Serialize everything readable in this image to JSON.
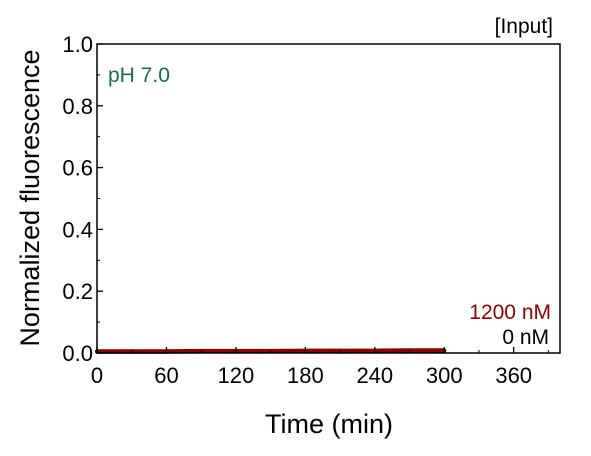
{
  "chart_data": {
    "type": "line",
    "xlabel": "Time (min)",
    "ylabel": "Normalized fluorescence",
    "xlim": [
      0,
      400
    ],
    "ylim": [
      0,
      1.0
    ],
    "x_ticks": [
      0,
      60,
      120,
      180,
      240,
      300,
      360
    ],
    "y_ticks": [
      "0.0",
      "0.2",
      "0.4",
      "0.6",
      "0.8",
      "1.0"
    ],
    "grid": false,
    "legend_title": "[Input]",
    "condition_label": "pH 7.0",
    "series": [
      {
        "name": "1200 nM",
        "color": "#8b0000",
        "x": [
          0,
          30,
          60,
          90,
          120,
          150,
          180,
          210,
          240,
          270,
          300
        ],
        "y": [
          0.005,
          0.005,
          0.005,
          0.006,
          0.006,
          0.006,
          0.007,
          0.007,
          0.007,
          0.008,
          0.008
        ]
      },
      {
        "name": "0 nM",
        "color": "#000000",
        "x": [
          0,
          30,
          60,
          90,
          120,
          150,
          180,
          210,
          240,
          270,
          300
        ],
        "y": [
          0.003,
          0.003,
          0.003,
          0.003,
          0.003,
          0.003,
          0.003,
          0.003,
          0.003,
          0.003,
          0.003
        ]
      }
    ]
  }
}
